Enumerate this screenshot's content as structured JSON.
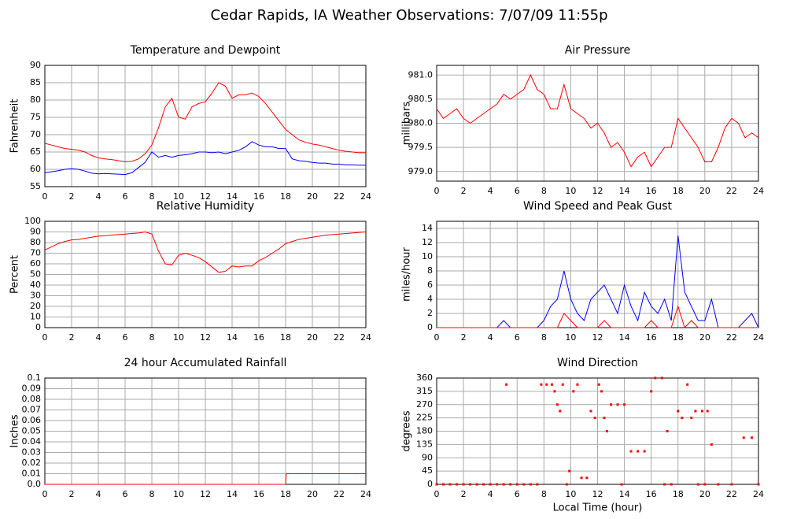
{
  "title": "Cedar Rapids, IA Weather Observations: 7/07/09 11:55p",
  "chart_data": [
    {
      "type": "line",
      "title": "Temperature and Dewpoint",
      "y_label": "Fahrenheit",
      "x": [
        0,
        0.5,
        1,
        1.5,
        2,
        2.5,
        3,
        3.5,
        4,
        4.5,
        5,
        5.5,
        6,
        6.5,
        7,
        7.5,
        8,
        8.5,
        9,
        9.5,
        10,
        10.5,
        11,
        11.5,
        12,
        12.5,
        13,
        13.5,
        14,
        14.5,
        15,
        15.5,
        16,
        16.5,
        17,
        17.5,
        18,
        18.5,
        19,
        19.5,
        20,
        20.5,
        21,
        21.5,
        22,
        22.5,
        23,
        23.5,
        24
      ],
      "series": [
        {
          "color": "#ff0000",
          "values": [
            67.5,
            67,
            66.5,
            66,
            65.8,
            65.5,
            65,
            64,
            63.3,
            63,
            62.8,
            62.5,
            62.2,
            62.3,
            63,
            64.5,
            67,
            72,
            78,
            80.5,
            75,
            74.5,
            78,
            79,
            79.5,
            82,
            85,
            84,
            80.5,
            81.5,
            81.5,
            82,
            81,
            79,
            76.5,
            74,
            71.5,
            70,
            68.5,
            67.8,
            67.3,
            67,
            66.5,
            66,
            65.5,
            65.2,
            65,
            64.8,
            64.8
          ]
        },
        {
          "color": "#0000ff",
          "values": [
            59,
            59.3,
            59.6,
            60,
            60.2,
            60,
            59.5,
            58.9,
            58.7,
            58.8,
            58.7,
            58.6,
            58.5,
            59,
            60.5,
            62,
            65,
            63.5,
            64,
            63.5,
            64,
            64.2,
            64.5,
            65,
            65,
            64.8,
            65,
            64.5,
            65,
            65.5,
            66.5,
            68,
            67,
            66.5,
            66.5,
            66,
            66,
            63,
            62.5,
            62.3,
            62,
            61.8,
            61.8,
            61.5,
            61.5,
            61.3,
            61.3,
            61.2,
            61.2
          ]
        }
      ],
      "xlim": [
        0,
        24
      ],
      "xticks": [
        0,
        2,
        4,
        6,
        8,
        10,
        12,
        14,
        16,
        18,
        20,
        22,
        24
      ],
      "ylim": [
        55,
        90
      ],
      "yticks": [
        55,
        60,
        65,
        70,
        75,
        80,
        85,
        90
      ],
      "grid": true
    },
    {
      "type": "line",
      "title": "Air Pressure",
      "y_label": "millibars",
      "x": [
        0,
        0.5,
        1,
        1.5,
        2,
        2.5,
        3,
        3.5,
        4,
        4.5,
        5,
        5.5,
        6,
        6.5,
        7,
        7.5,
        8,
        8.5,
        9,
        9.5,
        10,
        10.5,
        11,
        11.5,
        12,
        12.5,
        13,
        13.5,
        14,
        14.5,
        15,
        15.5,
        16,
        16.5,
        17,
        17.5,
        18,
        18.5,
        19,
        19.5,
        20,
        20.5,
        21,
        21.5,
        22,
        22.5,
        23,
        23.5,
        24
      ],
      "series": [
        {
          "color": "#ff0000",
          "values": [
            980.3,
            980.1,
            980.2,
            980.3,
            980.1,
            980.0,
            980.1,
            980.2,
            980.3,
            980.4,
            980.6,
            980.5,
            980.6,
            980.7,
            981.0,
            980.7,
            980.6,
            980.3,
            980.3,
            980.8,
            980.3,
            980.2,
            980.1,
            979.9,
            980.0,
            979.8,
            979.5,
            979.6,
            979.4,
            979.1,
            979.3,
            979.4,
            979.1,
            979.3,
            979.5,
            979.5,
            980.1,
            979.9,
            979.7,
            979.5,
            979.2,
            979.2,
            979.5,
            979.9,
            980.1,
            980.0,
            979.7,
            979.8,
            979.7
          ]
        }
      ],
      "xlim": [
        0,
        24
      ],
      "xticks": [
        0,
        2,
        4,
        6,
        8,
        10,
        12,
        14,
        16,
        18,
        20,
        22,
        24
      ],
      "ylim": [
        978.8,
        981.2
      ],
      "yticks": [
        {
          "value": 979,
          "label": "979.0"
        },
        979.5,
        {
          "value": 980,
          "label": "980.0"
        },
        980.5,
        {
          "value": 981,
          "label": "981.0"
        }
      ],
      "grid": true
    },
    {
      "type": "line",
      "title": "Relative Humidity",
      "y_label": "Percent",
      "x": [
        0,
        0.5,
        1,
        1.5,
        2,
        2.5,
        3,
        3.5,
        4,
        4.5,
        5,
        5.5,
        6,
        6.5,
        7,
        7.5,
        8,
        8.5,
        9,
        9.5,
        10,
        10.5,
        11,
        11.5,
        12,
        12.5,
        13,
        13.5,
        14,
        14.5,
        15,
        15.5,
        16,
        16.5,
        17,
        17.5,
        18,
        18.5,
        19,
        19.5,
        20,
        20.5,
        21,
        21.5,
        22,
        22.5,
        23,
        23.5,
        24
      ],
      "series": [
        {
          "color": "#ff0000",
          "values": [
            73,
            76,
            79,
            81,
            82.5,
            83,
            84,
            85,
            86,
            86.5,
            87,
            87.5,
            88,
            88.5,
            89,
            90,
            88,
            72,
            60,
            59,
            68,
            70,
            68,
            66,
            62,
            57,
            52,
            53,
            58,
            57,
            58,
            58,
            63,
            66,
            70,
            74,
            79,
            81,
            83,
            84,
            85,
            86,
            87,
            87.5,
            88,
            88.5,
            89,
            89.5,
            90
          ]
        }
      ],
      "xlim": [
        0,
        24
      ],
      "xticks": [
        0,
        2,
        4,
        6,
        8,
        10,
        12,
        14,
        16,
        18,
        20,
        22,
        24
      ],
      "ylim": [
        0,
        100
      ],
      "yticks": [
        0,
        10,
        20,
        30,
        40,
        50,
        60,
        70,
        80,
        90,
        100
      ],
      "grid": true
    },
    {
      "type": "line",
      "title": "Wind Speed and Peak Gust",
      "y_label": "miles/hour",
      "x": [
        0,
        0.5,
        1,
        1.5,
        2,
        2.5,
        3,
        3.5,
        4,
        4.5,
        5,
        5.5,
        6,
        6.5,
        7,
        7.5,
        8,
        8.5,
        9,
        9.5,
        10,
        10.5,
        11,
        11.5,
        12,
        12.5,
        13,
        13.5,
        14,
        14.5,
        15,
        15.5,
        16,
        16.5,
        17,
        17.5,
        18,
        18.5,
        19,
        19.5,
        20,
        20.5,
        21,
        21.5,
        22,
        22.5,
        23,
        23.5,
        24
      ],
      "series": [
        {
          "color": "#0000ff",
          "values": [
            0,
            0,
            0,
            0,
            0,
            0,
            0,
            0,
            0,
            0,
            1,
            0,
            0,
            0,
            0,
            0,
            1,
            3,
            4,
            8,
            4,
            2,
            1,
            4,
            5,
            6,
            4,
            2,
            6,
            3,
            1,
            5,
            3,
            2,
            4,
            1,
            13,
            5,
            3,
            1,
            1,
            4,
            0,
            0,
            0,
            0,
            1,
            2,
            0
          ]
        },
        {
          "color": "#ff0000",
          "values": [
            0,
            0,
            0,
            0,
            0,
            0,
            0,
            0,
            0,
            0,
            0,
            0,
            0,
            0,
            0,
            0,
            0,
            0,
            0,
            2,
            1,
            0,
            0,
            0,
            0,
            1,
            0,
            0,
            0,
            0,
            0,
            0,
            1,
            0,
            0,
            0,
            3,
            0,
            1,
            0,
            0,
            0,
            0,
            0,
            0,
            0,
            0,
            0,
            0
          ]
        }
      ],
      "xlim": [
        0,
        24
      ],
      "xticks": [
        0,
        2,
        4,
        6,
        8,
        10,
        12,
        14,
        16,
        18,
        20,
        22,
        24
      ],
      "ylim": [
        0,
        15
      ],
      "yticks": [
        0,
        2,
        4,
        6,
        8,
        10,
        12,
        14
      ],
      "grid": true
    },
    {
      "type": "line",
      "title": "24 hour Accumulated Rainfall",
      "y_label": "Inches",
      "x": [
        0,
        18,
        18.05,
        24
      ],
      "series": [
        {
          "color": "#ff0000",
          "values": [
            0,
            0,
            0.01,
            0.01
          ]
        }
      ],
      "xlim": [
        0,
        24
      ],
      "xticks": [
        0,
        2,
        4,
        6,
        8,
        10,
        12,
        14,
        16,
        18,
        20,
        22,
        24
      ],
      "ylim": [
        0,
        0.1
      ],
      "yticks": [
        {
          "value": 0,
          "label": "0.0"
        },
        0.01,
        0.02,
        0.03,
        0.04,
        0.05,
        0.06,
        0.07,
        0.08,
        0.09,
        {
          "value": 0.1,
          "label": "0.1"
        }
      ],
      "grid": true
    },
    {
      "type": "scatter",
      "title": "Wind Direction",
      "y_label": "degrees",
      "x_label": "Local Time (hour)",
      "x": [
        0,
        0.5,
        1,
        1.5,
        2,
        2.5,
        3,
        3.5,
        4,
        4.5,
        5,
        5.5,
        6,
        6.5,
        7,
        7.5,
        5.2,
        7.8,
        8.2,
        8.6,
        8.8,
        9,
        9.2,
        9.4,
        9.7,
        9.9,
        10.2,
        10.5,
        10.8,
        11.2,
        11.5,
        11.8,
        12.1,
        12.3,
        12.5,
        12.7,
        13,
        13.5,
        14,
        13.8,
        14.5,
        15,
        15.5,
        16,
        16.3,
        16.8,
        17.2,
        17.5,
        18,
        18.3,
        18.7,
        19,
        19.3,
        19.8,
        20.2,
        20.5,
        20,
        21,
        22,
        22.9,
        23.5,
        24,
        17,
        19.5
      ],
      "series": [
        {
          "color": "#ff0000",
          "values": [
            0,
            0,
            0,
            0,
            0,
            0,
            0,
            0,
            0,
            0,
            0,
            0,
            0,
            0,
            0,
            0,
            338,
            338,
            338,
            338,
            315,
            270,
            248,
            338,
            0,
            45,
            315,
            338,
            22,
            22,
            248,
            225,
            338,
            315,
            225,
            180,
            270,
            270,
            270,
            0,
            112,
            112,
            112,
            315,
            360,
            360,
            180,
            0,
            248,
            225,
            338,
            225,
            248,
            248,
            248,
            135,
            0,
            0,
            0,
            158,
            158,
            0,
            0,
            0
          ]
        }
      ],
      "xlim": [
        0,
        24
      ],
      "xticks": [
        0,
        2,
        4,
        6,
        8,
        10,
        12,
        14,
        16,
        18,
        20,
        22,
        24
      ],
      "ylim": [
        0,
        360
      ],
      "yticks": [
        0,
        45,
        90,
        135,
        180,
        225,
        270,
        315,
        360
      ],
      "grid": true
    }
  ]
}
